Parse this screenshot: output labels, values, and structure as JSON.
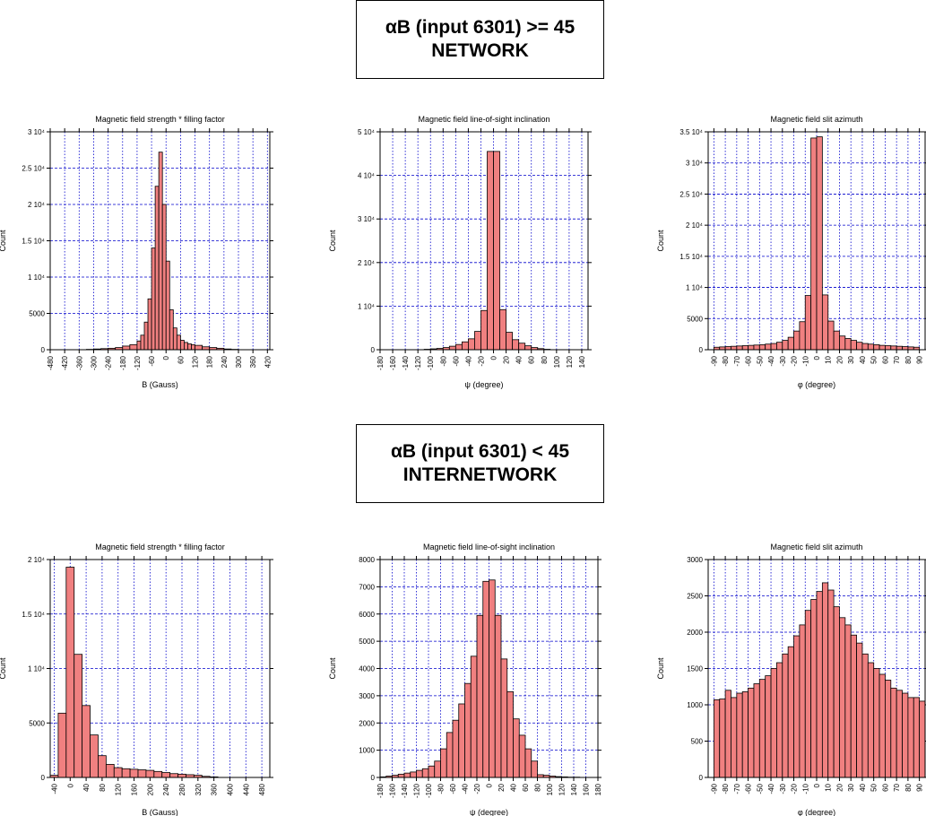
{
  "sections": [
    {
      "line1": "αB (input 6301) >= 45",
      "line2": "NETWORK"
    },
    {
      "line1": "αB (input 6301) < 45",
      "line2": "INTERNETWORK"
    }
  ],
  "chart_data": [
    {
      "type": "bar",
      "title": "Magnetic field strength * filling factor",
      "xlabel": "B (Gauss)",
      "ylabel": "Count",
      "xlim": [
        -480,
        430
      ],
      "ylim": [
        0,
        30000
      ],
      "x_ticks": [
        -480,
        -420,
        -360,
        -300,
        -240,
        -180,
        -120,
        -60,
        0,
        60,
        120,
        180,
        240,
        300,
        360,
        420
      ],
      "y_ticks": [
        0,
        5000,
        10000,
        15000,
        20000,
        25000,
        30000
      ],
      "y_tick_labels": [
        "0",
        "5000",
        "1 10⁴",
        "1.5 10⁴",
        "2 10⁴",
        "2.5 10⁴",
        "3 10⁴"
      ],
      "grid": true,
      "bin_edges": [
        -420,
        -390,
        -360,
        -330,
        -300,
        -270,
        -240,
        -210,
        -180,
        -150,
        -120,
        -105,
        -90,
        -75,
        -60,
        -45,
        -30,
        -15,
        0,
        15,
        30,
        45,
        60,
        75,
        90,
        105,
        120,
        150,
        180,
        210,
        240,
        270,
        300,
        330,
        360,
        390
      ],
      "values": [
        0,
        0,
        0,
        50,
        100,
        150,
        200,
        300,
        500,
        700,
        1200,
        2000,
        3800,
        7000,
        14000,
        22500,
        27200,
        20000,
        12200,
        5500,
        3000,
        2000,
        1300,
        1000,
        800,
        700,
        600,
        400,
        300,
        200,
        100,
        50,
        0,
        0,
        0
      ]
    },
    {
      "type": "bar",
      "title": "Magnetic field line-of-sight inclination",
      "xlabel": "ψ (degree)",
      "ylabel": "Count",
      "xlim": [
        -180,
        150
      ],
      "ylim": [
        0,
        50000
      ],
      "x_ticks": [
        -180,
        -160,
        -140,
        -120,
        -100,
        -80,
        -60,
        -40,
        -20,
        0,
        20,
        40,
        60,
        80,
        100,
        120,
        140
      ],
      "y_ticks": [
        0,
        10000,
        20000,
        30000,
        40000,
        50000
      ],
      "y_tick_labels": [
        "0",
        "1 10⁴",
        "2 10⁴",
        "3 10⁴",
        "4 10⁴",
        "5 10⁴"
      ],
      "grid": true,
      "bin_edges": [
        -180,
        -170,
        -160,
        -150,
        -140,
        -130,
        -120,
        -110,
        -100,
        -90,
        -80,
        -70,
        -60,
        -50,
        -40,
        -30,
        -20,
        -10,
        0,
        10,
        20,
        30,
        40,
        50,
        60,
        70,
        80,
        90,
        100,
        110,
        120,
        130,
        140,
        150
      ],
      "values": [
        0,
        0,
        0,
        0,
        0,
        0,
        0,
        100,
        200,
        300,
        500,
        800,
        1200,
        1800,
        2500,
        4200,
        9000,
        45500,
        45500,
        9200,
        4000,
        2300,
        1500,
        900,
        500,
        250,
        100,
        0,
        0,
        0,
        0,
        0,
        0
      ]
    },
    {
      "type": "bar",
      "title": "Magnetic field slit azimuth",
      "xlabel": "φ (degree)",
      "ylabel": "Count",
      "xlim": [
        -95,
        95
      ],
      "ylim": [
        0,
        35000
      ],
      "x_ticks": [
        -90,
        -80,
        -70,
        -60,
        -50,
        -40,
        -30,
        -20,
        -10,
        0,
        10,
        20,
        30,
        40,
        50,
        60,
        70,
        80,
        90
      ],
      "y_ticks": [
        0,
        5000,
        10000,
        15000,
        20000,
        25000,
        30000,
        35000
      ],
      "y_tick_labels": [
        "0",
        "5000",
        "1 10⁴",
        "1.5 10⁴",
        "2 10⁴",
        "2.5 10⁴",
        "3 10⁴",
        "3.5 10⁴"
      ],
      "grid": true,
      "bin_edges": [
        -90,
        -85,
        -80,
        -75,
        -70,
        -65,
        -60,
        -55,
        -50,
        -45,
        -40,
        -35,
        -30,
        -25,
        -20,
        -15,
        -10,
        -5,
        0,
        5,
        10,
        15,
        20,
        25,
        30,
        35,
        40,
        45,
        50,
        55,
        60,
        65,
        70,
        75,
        80,
        85,
        90
      ],
      "values": [
        400,
        450,
        500,
        550,
        600,
        650,
        700,
        750,
        800,
        900,
        1000,
        1200,
        1500,
        2000,
        3000,
        4500,
        8700,
        34000,
        34200,
        8800,
        4600,
        3000,
        2200,
        1800,
        1500,
        1200,
        1000,
        900,
        800,
        700,
        650,
        600,
        550,
        500,
        450,
        400
      ]
    },
    {
      "type": "bar",
      "title": "Magnetic field strength * filling factor",
      "xlabel": "B (Gauss)",
      "ylabel": "Count",
      "xlim": [
        -50,
        500
      ],
      "ylim": [
        0,
        20000
      ],
      "x_ticks": [
        -40,
        0,
        40,
        80,
        120,
        160,
        200,
        240,
        280,
        320,
        360,
        400,
        440,
        480
      ],
      "y_ticks": [
        0,
        5000,
        10000,
        15000,
        20000
      ],
      "y_tick_labels": [
        "0",
        "5000",
        "1 10⁴",
        "1.5 10⁴",
        "2 10⁴"
      ],
      "grid": true,
      "bin_edges": [
        -50,
        -30,
        -10,
        10,
        30,
        50,
        70,
        90,
        110,
        130,
        150,
        170,
        190,
        210,
        230,
        250,
        270,
        290,
        310,
        330,
        350,
        370,
        390,
        410,
        430,
        450,
        470,
        490,
        500
      ],
      "values": [
        200,
        5900,
        19300,
        11300,
        6600,
        3900,
        2000,
        1200,
        900,
        800,
        750,
        700,
        650,
        550,
        450,
        350,
        300,
        250,
        200,
        100,
        50,
        0,
        0,
        0,
        0,
        0,
        0,
        0
      ]
    },
    {
      "type": "bar",
      "title": "Magnetic field line-of-sight inclination",
      "xlabel": "ψ (degree)",
      "ylabel": "Count",
      "xlim": [
        -180,
        180
      ],
      "ylim": [
        0,
        8000
      ],
      "x_ticks": [
        -180,
        -160,
        -140,
        -120,
        -100,
        -80,
        -60,
        -40,
        -20,
        0,
        20,
        40,
        60,
        80,
        100,
        120,
        140,
        160,
        180
      ],
      "y_ticks": [
        0,
        1000,
        2000,
        3000,
        4000,
        5000,
        6000,
        7000,
        8000
      ],
      "y_tick_labels": [
        "0",
        "1000",
        "2000",
        "3000",
        "4000",
        "5000",
        "6000",
        "7000",
        "8000"
      ],
      "grid": true,
      "bin_edges": [
        -180,
        -170,
        -160,
        -150,
        -140,
        -130,
        -120,
        -110,
        -100,
        -90,
        -80,
        -70,
        -60,
        -50,
        -40,
        -30,
        -20,
        -10,
        0,
        10,
        20,
        30,
        40,
        50,
        60,
        70,
        80,
        90,
        100,
        110,
        120,
        130,
        140,
        150,
        160,
        170,
        180
      ],
      "values": [
        20,
        50,
        80,
        120,
        160,
        200,
        260,
        320,
        420,
        600,
        1050,
        1650,
        2100,
        2700,
        3450,
        4450,
        5950,
        7200,
        7250,
        5950,
        4350,
        3150,
        2150,
        1550,
        1050,
        600,
        100,
        80,
        50,
        30,
        20,
        10,
        10,
        0,
        0,
        0
      ]
    },
    {
      "type": "bar",
      "title": "Magnetic field slit azimuth",
      "xlabel": "φ (degree)",
      "ylabel": "Count",
      "xlim": [
        -95,
        95
      ],
      "ylim": [
        0,
        3000
      ],
      "x_ticks": [
        -90,
        -80,
        -70,
        -60,
        -50,
        -40,
        -30,
        -20,
        -10,
        0,
        10,
        20,
        30,
        40,
        50,
        60,
        70,
        80,
        90
      ],
      "y_ticks": [
        0,
        500,
        1000,
        1500,
        2000,
        2500,
        3000
      ],
      "y_tick_labels": [
        "0",
        "500",
        "1000",
        "1500",
        "2000",
        "2500",
        "3000"
      ],
      "grid": true,
      "bin_edges": [
        -90,
        -85,
        -80,
        -75,
        -70,
        -65,
        -60,
        -55,
        -50,
        -45,
        -40,
        -35,
        -30,
        -25,
        -20,
        -15,
        -10,
        -5,
        0,
        5,
        10,
        15,
        20,
        25,
        30,
        35,
        40,
        45,
        50,
        55,
        60,
        65,
        70,
        75,
        80,
        85,
        90,
        95
      ],
      "values": [
        1070,
        1080,
        1200,
        1100,
        1160,
        1180,
        1230,
        1290,
        1350,
        1400,
        1500,
        1580,
        1700,
        1800,
        1950,
        2100,
        2300,
        2450,
        2560,
        2680,
        2580,
        2350,
        2200,
        2100,
        1960,
        1850,
        1700,
        1580,
        1500,
        1420,
        1340,
        1230,
        1200,
        1160,
        1100,
        1100,
        1050
      ]
    }
  ]
}
